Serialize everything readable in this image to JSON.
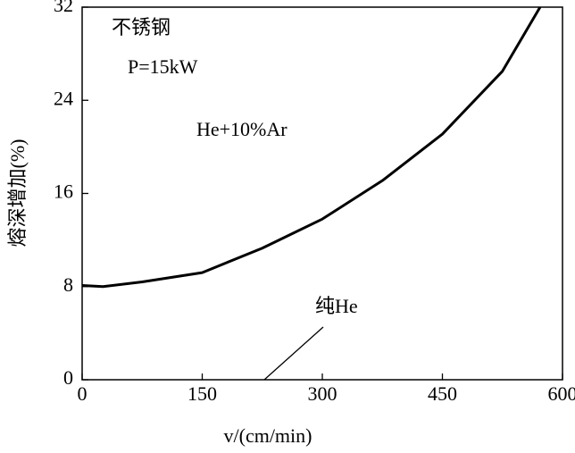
{
  "chart_data": {
    "type": "line",
    "x_label": "v/(cm/min)",
    "y_label": "熔深增加(%)",
    "annotations": [
      "不锈钢",
      "P=15kW",
      "纯He"
    ],
    "x": [
      0,
      26,
      75,
      150,
      225,
      300,
      375,
      450,
      525,
      572
    ],
    "series": [
      {
        "name": "He+10%Ar",
        "color": "#000000",
        "values": [
          8.1,
          8.0,
          8.4,
          9.2,
          11.3,
          13.8,
          17.1,
          21.1,
          26.5,
          32
        ]
      }
    ],
    "xlim": [
      0,
      600
    ],
    "xticks": [
      0,
      150,
      300,
      450,
      600
    ],
    "ylim": [
      0,
      32
    ],
    "yticks": [
      0,
      8,
      16,
      24,
      32
    ],
    "grid": false
  }
}
